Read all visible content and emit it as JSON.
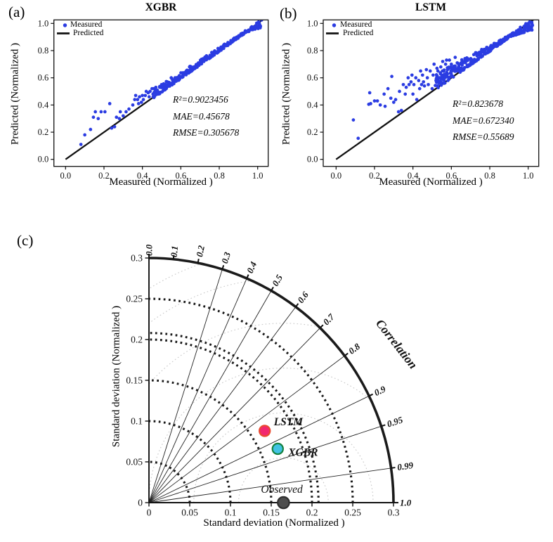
{
  "figure": {
    "panel_letters": [
      "(a)",
      "(b)",
      "(c)"
    ]
  },
  "chart_data": [
    {
      "type": "scatter",
      "panel_label": "(a)",
      "title": "XGBR",
      "xlabel": "Measured (Normalized )",
      "ylabel": "Predicted (Normalized )",
      "xlim": [
        0,
        1.05
      ],
      "ylim": [
        0,
        1.05
      ],
      "xticks": [
        "0.0",
        "0.2",
        "0.4",
        "0.6",
        "0.8",
        "1.0"
      ],
      "yticks": [
        "0.0",
        "0.2",
        "0.4",
        "0.6",
        "0.8",
        "1.0"
      ],
      "legend": [
        "Measured",
        "Predicted"
      ],
      "stats_lines": [
        "R²=0.9023456",
        "MAE=0.45678",
        "RMSE=0.305678"
      ],
      "point_color": "#2b3ce2",
      "line_color": "#111111",
      "identity_line": true,
      "band": {
        "seed": 11,
        "n": 250,
        "x0": 0.46,
        "x1": 1.02,
        "pinch": 0.93,
        "top_max": 0.055,
        "top_min": 0.01,
        "bot_pre": 0.007,
        "below_end": 0.05,
        "bias": 1.4
      },
      "points": [
        [
          0.08,
          0.11
        ],
        [
          0.1,
          0.18
        ],
        [
          0.13,
          0.22
        ],
        [
          0.145,
          0.31
        ],
        [
          0.155,
          0.35
        ],
        [
          0.17,
          0.3
        ],
        [
          0.185,
          0.35
        ],
        [
          0.205,
          0.35
        ],
        [
          0.23,
          0.41
        ],
        [
          0.24,
          0.23
        ],
        [
          0.255,
          0.24
        ],
        [
          0.265,
          0.31
        ],
        [
          0.28,
          0.3
        ],
        [
          0.285,
          0.35
        ],
        [
          0.3,
          0.32
        ],
        [
          0.315,
          0.35
        ],
        [
          0.33,
          0.37
        ],
        [
          0.35,
          0.4
        ],
        [
          0.36,
          0.44
        ],
        [
          0.365,
          0.47
        ],
        [
          0.375,
          0.44
        ],
        [
          0.38,
          0.41
        ],
        [
          0.385,
          0.46
        ],
        [
          0.395,
          0.42
        ],
        [
          0.4,
          0.47
        ],
        [
          0.405,
          0.44
        ],
        [
          0.415,
          0.47
        ],
        [
          0.42,
          0.5
        ],
        [
          0.43,
          0.49
        ],
        [
          0.435,
          0.46
        ],
        [
          0.44,
          0.5
        ],
        [
          0.45,
          0.52
        ],
        [
          0.455,
          0.48
        ],
        [
          0.46,
          0.52
        ],
        [
          0.47,
          0.53
        ],
        [
          0.48,
          0.5
        ],
        [
          0.49,
          0.53
        ],
        [
          0.5,
          0.55
        ],
        [
          0.51,
          0.52
        ],
        [
          0.52,
          0.55
        ],
        [
          0.53,
          0.57
        ],
        [
          0.545,
          0.56
        ],
        [
          0.55,
          0.6
        ],
        [
          0.56,
          0.58
        ],
        [
          0.57,
          0.6
        ]
      ]
    },
    {
      "type": "scatter",
      "panel_label": "(b)",
      "title": "LSTM",
      "xlabel": "Measured (Normalized )",
      "ylabel": "Predicted (Normalized )",
      "xlim": [
        0,
        1.05
      ],
      "ylim": [
        0,
        1.05
      ],
      "xticks": [
        "0.0",
        "0.2",
        "0.4",
        "0.6",
        "0.8",
        "1.0"
      ],
      "yticks": [
        "0.0",
        "0.2",
        "0.4",
        "0.6",
        "0.8",
        "1.0"
      ],
      "legend": [
        "Measured",
        "Predicted"
      ],
      "stats_lines": [
        "R²=0.823678",
        "MAE=0.672340",
        "RMSE=0.55689"
      ],
      "point_color": "#2b3ce2",
      "line_color": "#111111",
      "identity_line": true,
      "band": {
        "seed": 23,
        "n": 300,
        "x0": 0.52,
        "x1": 1.02,
        "pinch": 0.9,
        "top_max": 0.115,
        "top_min": 0.012,
        "bot_pre": 0.006,
        "below_end": 0.07,
        "bias": 1.3
      },
      "points": [
        [
          0.09,
          0.29
        ],
        [
          0.115,
          0.155
        ],
        [
          0.17,
          0.405
        ],
        [
          0.175,
          0.49
        ],
        [
          0.18,
          0.41
        ],
        [
          0.2,
          0.43
        ],
        [
          0.215,
          0.43
        ],
        [
          0.23,
          0.4
        ],
        [
          0.25,
          0.48
        ],
        [
          0.255,
          0.39
        ],
        [
          0.27,
          0.52
        ],
        [
          0.285,
          0.45
        ],
        [
          0.29,
          0.61
        ],
        [
          0.3,
          0.42
        ],
        [
          0.31,
          0.44
        ],
        [
          0.325,
          0.35
        ],
        [
          0.33,
          0.5
        ],
        [
          0.34,
          0.36
        ],
        [
          0.35,
          0.55
        ],
        [
          0.36,
          0.48
        ],
        [
          0.365,
          0.53
        ],
        [
          0.375,
          0.6
        ],
        [
          0.38,
          0.55
        ],
        [
          0.39,
          0.57
        ],
        [
          0.395,
          0.62
        ],
        [
          0.4,
          0.48
        ],
        [
          0.405,
          0.55
        ],
        [
          0.415,
          0.6
        ],
        [
          0.42,
          0.44
        ],
        [
          0.43,
          0.58
        ],
        [
          0.435,
          0.52
        ],
        [
          0.44,
          0.65
        ],
        [
          0.445,
          0.55
        ],
        [
          0.45,
          0.62
        ],
        [
          0.455,
          0.57
        ],
        [
          0.46,
          0.54
        ],
        [
          0.47,
          0.66
        ],
        [
          0.475,
          0.6
        ],
        [
          0.48,
          0.55
        ],
        [
          0.49,
          0.65
        ],
        [
          0.5,
          0.52
        ],
        [
          0.505,
          0.62
        ],
        [
          0.51,
          0.7
        ],
        [
          0.52,
          0.58
        ],
        [
          0.525,
          0.67
        ],
        [
          0.53,
          0.65
        ],
        [
          0.54,
          0.6
        ],
        [
          0.545,
          0.68
        ],
        [
          0.55,
          0.62
        ],
        [
          0.555,
          0.72
        ],
        [
          0.56,
          0.65
        ],
        [
          0.57,
          0.7
        ],
        [
          0.575,
          0.73
        ],
        [
          0.58,
          0.66
        ],
        [
          0.59,
          0.73
        ],
        [
          0.6,
          0.7
        ],
        [
          0.61,
          0.67
        ],
        [
          0.62,
          0.75
        ]
      ]
    },
    {
      "type": "taylor",
      "panel_label": "(c)",
      "xlabel": "Standard deviation (Normalized )",
      "ylabel": "Standard deviation (Normalized )",
      "axis_max": 0.3,
      "xticks": [
        "0",
        "0.05",
        "0.1",
        "0.15",
        "0.2",
        "0.25",
        "0.3"
      ],
      "yticks": [
        "0",
        "0.05",
        "0.1",
        "0.15",
        "0.2",
        "0.25",
        "0.3"
      ],
      "std_arcs": [
        0.05,
        0.1,
        0.15,
        0.2,
        0.208,
        0.25
      ],
      "outer_radius": 0.3,
      "rms_center": 0.165,
      "rms_arcs": [
        0.055,
        0.11,
        0.165,
        0.22,
        0.275,
        0.31
      ],
      "corr_lines": [
        0.3,
        0.4,
        0.5,
        0.6,
        0.7,
        0.8,
        0.9,
        0.95,
        0.99
      ],
      "corr_ticks": [
        {
          "label": "0.0",
          "v": 0
        },
        {
          "label": "0.1",
          "v": 0.1
        },
        {
          "label": "0.2",
          "v": 0.2
        },
        {
          "label": "0.3",
          "v": 0.3
        },
        {
          "label": "0.4",
          "v": 0.4
        },
        {
          "label": "0.5",
          "v": 0.5
        },
        {
          "label": "0.6",
          "v": 0.6
        },
        {
          "label": "0.7",
          "v": 0.7
        },
        {
          "label": "0.8",
          "v": 0.8
        },
        {
          "label": "0.9",
          "v": 0.9
        },
        {
          "label": "0.95",
          "v": 0.95
        },
        {
          "label": "0.99",
          "v": 0.99
        },
        {
          "label": "1.0",
          "v": 1
        }
      ],
      "corr_axis_label": "Correlation",
      "points": [
        {
          "name": "LSTM",
          "x": 0.142,
          "y": 0.088,
          "fill": "#f2276f",
          "stroke": "#e94a2f"
        },
        {
          "name": "XGBR",
          "x": 0.158,
          "y": 0.066,
          "fill": "#41c3e3",
          "stroke": "#15813f"
        },
        {
          "name": "Observed",
          "x": 0.165,
          "y": 0,
          "fill": "#4d4d4d",
          "stroke": "#2e2e2e"
        }
      ]
    }
  ]
}
